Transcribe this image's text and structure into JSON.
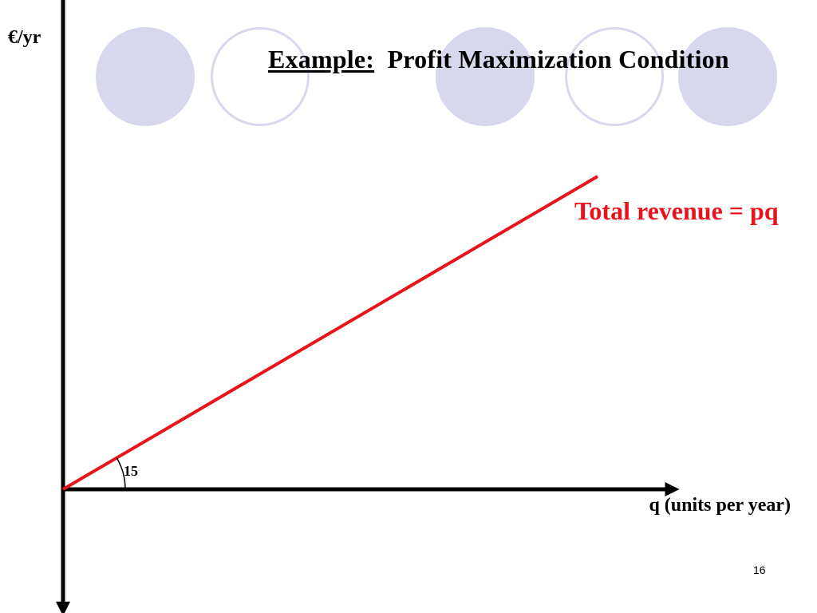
{
  "slide": {
    "title_label": "Example:",
    "title_text": "Profit Maximization Condition",
    "page_number": "16"
  },
  "decoration": {
    "circles": [
      "filled",
      "outline",
      "filled",
      "outline",
      "filled"
    ],
    "circle_color": "#d7d7ee"
  },
  "chart_data": {
    "type": "line",
    "ylabel": "€/yr",
    "xlabel": "q (units per year)",
    "series": [
      {
        "name": "Total revenue = pq",
        "color": "#e8141c",
        "x": [
          0,
          1
        ],
        "y": [
          0,
          0.5
        ]
      }
    ],
    "xlim": [
      0,
      1.15
    ],
    "ylim": [
      -0.2,
      0.95
    ],
    "angle_annotation": "15",
    "grid": false,
    "axis_arrows": true
  }
}
